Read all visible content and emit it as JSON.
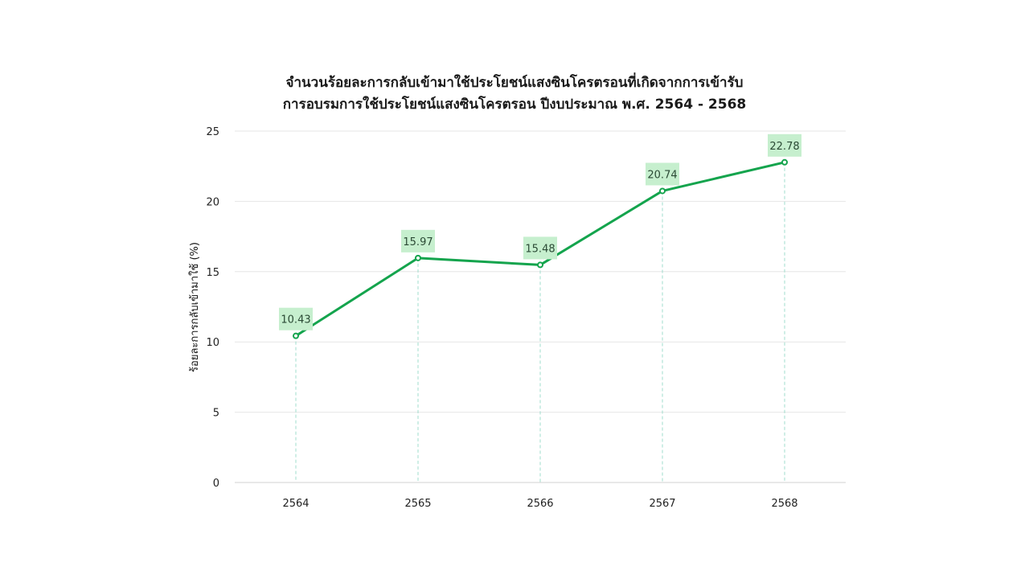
{
  "chart_data": {
    "type": "line",
    "title_lines": [
      "จำนวนร้อยละการกลับเข้ามาใช้ประโยชน์แสงซินโครตรอนที่เกิดจากการเข้ารับ",
      "การอบรมการใช้ประโยชน์แสงซินโครตรอน ปีงบประมาณ พ.ศ. 2564 - 2568"
    ],
    "categories": [
      "2564",
      "2565",
      "2566",
      "2567",
      "2568"
    ],
    "series": [
      {
        "name": "ร้อยละการกลับเข้ามาใช้",
        "values": [
          10.43,
          15.97,
          15.48,
          20.74,
          22.78
        ],
        "data_labels": [
          "10.43",
          "15.97",
          "15.48",
          "20.74",
          "22.78"
        ]
      }
    ],
    "xlabel": "",
    "ylabel": "ร้อยละการกลับเข้ามาใช้ (%)",
    "ylim": [
      0,
      25
    ],
    "yticks": [
      "0",
      "5",
      "10",
      "15",
      "20",
      "25"
    ],
    "grid": true,
    "drop_lines": true,
    "colors": {
      "line": "#14a44d",
      "marker_fill": "#ffffff",
      "label_bg": "#c6efce",
      "grid": "#e6e6e6",
      "drop_line": "#9fdccc",
      "axis": "#d0d0d0"
    }
  }
}
